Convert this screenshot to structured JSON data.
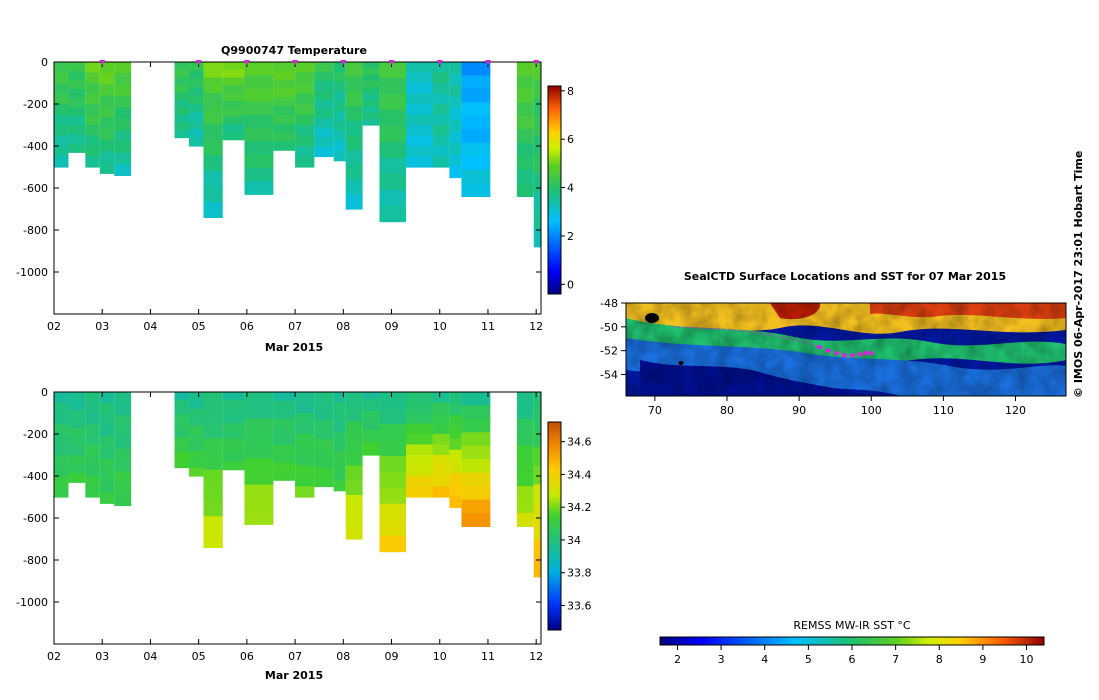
{
  "chart_data": [
    {
      "type": "heatmap",
      "name": "temperature-section",
      "title": "Q9900747  Temperature",
      "xlabel": "Mar 2015",
      "ylabel": "",
      "x_ticks": [
        "02",
        "03",
        "04",
        "05",
        "06",
        "07",
        "08",
        "09",
        "10",
        "11",
        "12"
      ],
      "y_ticks": [
        "0",
        "-200",
        "-400",
        "-600",
        "-800",
        "-1000"
      ],
      "xlim": [
        2,
        12.1
      ],
      "ylim": [
        -1200,
        0
      ],
      "colorbar": {
        "min": -0.4,
        "max": 8.2,
        "ticks": [
          "0",
          "2",
          "4",
          "6",
          "8"
        ]
      },
      "surfacing_markers": [
        3,
        5,
        6,
        7,
        8,
        9,
        10,
        11,
        12
      ],
      "profiles": [
        {
          "x0": 2.0,
          "x1": 2.3,
          "depth": 500,
          "top": 4.6,
          "bottom": 3.2
        },
        {
          "x0": 2.3,
          "x1": 2.65,
          "depth": 430,
          "top": 4.4,
          "bottom": 3.5
        },
        {
          "x0": 2.65,
          "x1": 2.95,
          "depth": 500,
          "top": 4.9,
          "bottom": 3.6
        },
        {
          "x0": 2.95,
          "x1": 3.25,
          "depth": 530,
          "top": 5.0,
          "bottom": 3.5
        },
        {
          "x0": 3.25,
          "x1": 3.6,
          "depth": 540,
          "top": 4.8,
          "bottom": 3.3
        },
        {
          "x0": 4.5,
          "x1": 4.8,
          "depth": 360,
          "top": 4.4,
          "bottom": 3.5
        },
        {
          "x0": 4.8,
          "x1": 5.1,
          "depth": 400,
          "top": 4.3,
          "bottom": 3.2
        },
        {
          "x0": 5.1,
          "x1": 5.5,
          "depth": 740,
          "top": 5.0,
          "bottom": 3.1
        },
        {
          "x0": 5.5,
          "x1": 5.95,
          "depth": 370,
          "top": 5.2,
          "bottom": 3.6
        },
        {
          "x0": 5.95,
          "x1": 6.55,
          "depth": 630,
          "top": 4.8,
          "bottom": 3.5
        },
        {
          "x0": 6.55,
          "x1": 7.0,
          "depth": 420,
          "top": 5.0,
          "bottom": 3.8
        },
        {
          "x0": 7.0,
          "x1": 7.4,
          "depth": 500,
          "top": 4.9,
          "bottom": 3.4
        },
        {
          "x0": 7.4,
          "x1": 7.8,
          "depth": 450,
          "top": 4.2,
          "bottom": 3.0
        },
        {
          "x0": 7.8,
          "x1": 8.05,
          "depth": 470,
          "top": 4.0,
          "bottom": 3.1
        },
        {
          "x0": 8.05,
          "x1": 8.4,
          "depth": 700,
          "top": 4.5,
          "bottom": 3.1
        },
        {
          "x0": 8.4,
          "x1": 8.75,
          "depth": 300,
          "top": 4.2,
          "bottom": 3.5
        },
        {
          "x0": 8.75,
          "x1": 9.3,
          "depth": 760,
          "top": 4.6,
          "bottom": 3.2
        },
        {
          "x0": 9.3,
          "x1": 9.85,
          "depth": 500,
          "top": 3.2,
          "bottom": 3.0
        },
        {
          "x0": 9.85,
          "x1": 10.2,
          "depth": 500,
          "top": 3.6,
          "bottom": 3.3
        },
        {
          "x0": 10.2,
          "x1": 10.45,
          "depth": 550,
          "top": 3.4,
          "bottom": 2.9
        },
        {
          "x0": 10.45,
          "x1": 11.05,
          "depth": 640,
          "top": 2.2,
          "bottom": 2.9
        },
        {
          "x0": 11.6,
          "x1": 11.95,
          "depth": 640,
          "top": 4.9,
          "bottom": 3.6
        },
        {
          "x0": 11.95,
          "x1": 12.1,
          "depth": 880,
          "top": 4.6,
          "bottom": 3.3
        }
      ]
    },
    {
      "type": "heatmap",
      "name": "salinity-section",
      "title": "",
      "xlabel": "Mar 2015",
      "ylabel": "",
      "x_ticks": [
        "02",
        "03",
        "04",
        "05",
        "06",
        "07",
        "08",
        "09",
        "10",
        "11",
        "12"
      ],
      "y_ticks": [
        "0",
        "-200",
        "-400",
        "-600",
        "-800",
        "-1000"
      ],
      "xlim": [
        2,
        12.1
      ],
      "ylim": [
        -1200,
        0
      ],
      "colorbar": {
        "min": 33.45,
        "max": 34.72,
        "ticks": [
          "33.6",
          "33.8",
          "34",
          "34.2",
          "34.4",
          "34.6"
        ]
      },
      "profiles": [
        {
          "x0": 2.0,
          "x1": 2.3,
          "depth": 500,
          "top": 33.95,
          "bottom": 34.1
        },
        {
          "x0": 2.3,
          "x1": 2.65,
          "depth": 430,
          "top": 33.95,
          "bottom": 34.1
        },
        {
          "x0": 2.65,
          "x1": 2.95,
          "depth": 500,
          "top": 33.95,
          "bottom": 34.12
        },
        {
          "x0": 2.95,
          "x1": 3.25,
          "depth": 530,
          "top": 33.95,
          "bottom": 34.1
        },
        {
          "x0": 3.25,
          "x1": 3.6,
          "depth": 540,
          "top": 33.95,
          "bottom": 34.12
        },
        {
          "x0": 4.5,
          "x1": 4.8,
          "depth": 360,
          "top": 33.95,
          "bottom": 34.15
        },
        {
          "x0": 4.8,
          "x1": 5.1,
          "depth": 400,
          "top": 33.95,
          "bottom": 34.15
        },
        {
          "x0": 5.1,
          "x1": 5.5,
          "depth": 740,
          "top": 33.95,
          "bottom": 34.32
        },
        {
          "x0": 5.5,
          "x1": 5.95,
          "depth": 370,
          "top": 33.95,
          "bottom": 34.12
        },
        {
          "x0": 5.95,
          "x1": 6.55,
          "depth": 630,
          "top": 33.95,
          "bottom": 34.28
        },
        {
          "x0": 6.55,
          "x1": 7.0,
          "depth": 420,
          "top": 33.95,
          "bottom": 34.15
        },
        {
          "x0": 7.0,
          "x1": 7.4,
          "depth": 500,
          "top": 33.95,
          "bottom": 34.18
        },
        {
          "x0": 7.4,
          "x1": 7.8,
          "depth": 450,
          "top": 33.95,
          "bottom": 34.15
        },
        {
          "x0": 7.8,
          "x1": 8.05,
          "depth": 470,
          "top": 33.95,
          "bottom": 34.12
        },
        {
          "x0": 8.05,
          "x1": 8.4,
          "depth": 700,
          "top": 33.95,
          "bottom": 34.35
        },
        {
          "x0": 8.4,
          "x1": 8.75,
          "depth": 300,
          "top": 33.95,
          "bottom": 34.15
        },
        {
          "x0": 8.75,
          "x1": 9.3,
          "depth": 760,
          "top": 33.95,
          "bottom": 34.42
        },
        {
          "x0": 9.3,
          "x1": 9.85,
          "depth": 500,
          "top": 33.95,
          "bottom": 34.45
        },
        {
          "x0": 9.85,
          "x1": 10.2,
          "depth": 500,
          "top": 33.95,
          "bottom": 34.48
        },
        {
          "x0": 10.2,
          "x1": 10.45,
          "depth": 550,
          "top": 33.95,
          "bottom": 34.52
        },
        {
          "x0": 10.45,
          "x1": 11.05,
          "depth": 640,
          "top": 33.95,
          "bottom": 34.58
        },
        {
          "x0": 11.6,
          "x1": 11.95,
          "depth": 640,
          "top": 33.95,
          "bottom": 34.3
        },
        {
          "x0": 11.95,
          "x1": 12.1,
          "depth": 880,
          "top": 33.95,
          "bottom": 34.52
        }
      ]
    },
    {
      "type": "heatmap",
      "name": "sst-map",
      "title": "SealCTD Surface Locations and SST for 07 Mar 2015",
      "xlabel": "",
      "ylabel": "",
      "x_ticks": [
        "70",
        "80",
        "90",
        "100",
        "110",
        "120"
      ],
      "y_ticks": [
        "-48",
        "-50",
        "-52",
        "-54"
      ],
      "xlim": [
        66,
        127
      ],
      "ylim": [
        -55.8,
        -48
      ],
      "colorbar": {
        "label": "REMSS MW-IR SST °C",
        "min": 1.6,
        "max": 10.4,
        "ticks": [
          "2",
          "3",
          "4",
          "5",
          "6",
          "7",
          "8",
          "9",
          "10"
        ]
      },
      "track": [
        [
          72.5,
          -50.0
        ],
        [
          76,
          -50.1
        ],
        [
          80,
          -50.2
        ],
        [
          84,
          -50.5
        ],
        [
          88,
          -50.9
        ],
        [
          91,
          -51.3
        ],
        [
          93,
          -51.7
        ],
        [
          95,
          -52.1
        ],
        [
          97,
          -52.4
        ],
        [
          99,
          -52.3
        ],
        [
          100,
          -52.2
        ]
      ],
      "surface_locations": [
        [
          92.8,
          -51.7
        ],
        [
          94,
          -52.0
        ],
        [
          95.2,
          -52.2
        ],
        [
          96.3,
          -52.4
        ],
        [
          97.4,
          -52.4
        ],
        [
          98.5,
          -52.3
        ],
        [
          99.3,
          -52.2
        ],
        [
          100,
          -52.2
        ]
      ]
    }
  ],
  "credit": "© IMOS 06-Apr-2017 23:01 Hobart Time",
  "colors": {
    "marker": "#e020e0",
    "frame": "#000000",
    "background": "#ffffff"
  }
}
